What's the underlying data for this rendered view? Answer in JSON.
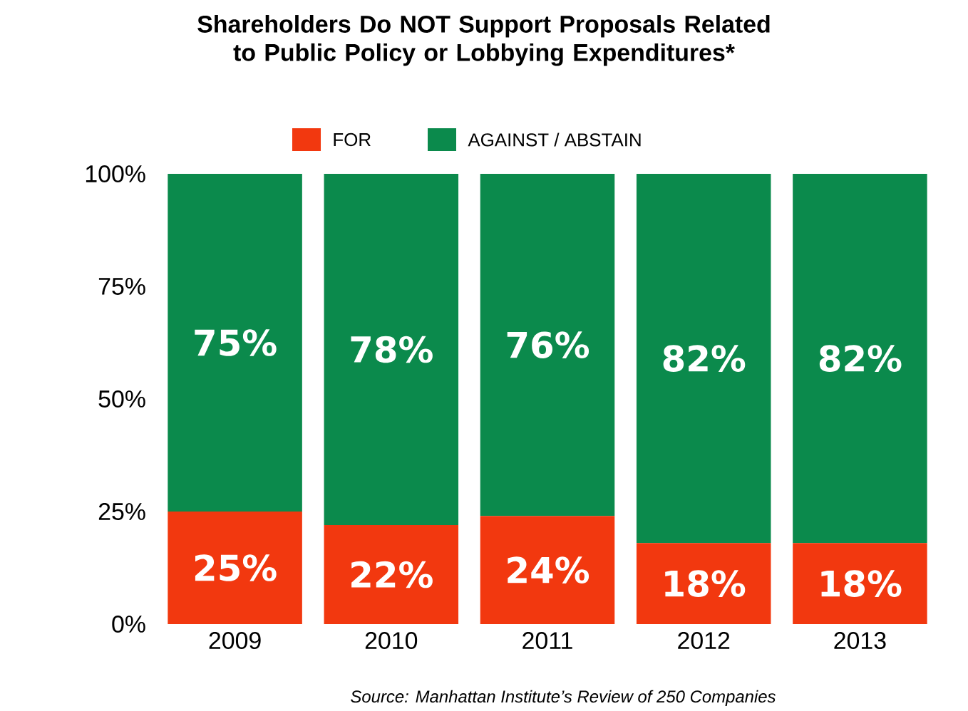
{
  "chart_data": {
    "type": "bar",
    "stacked": true,
    "title": "Shareholders Do NOT Support Proposals Related to Public Policy or Lobbying Expenditures*",
    "categories": [
      "2009",
      "2010",
      "2011",
      "2012",
      "2013"
    ],
    "series": [
      {
        "name": "FOR",
        "color": "#f2380f",
        "values": [
          25,
          22,
          24,
          18,
          18
        ],
        "value_labels": [
          "25%",
          "22%",
          "24%",
          "18%",
          "18%"
        ]
      },
      {
        "name": "AGAINST / ABSTAIN",
        "color": "#0b8a4c",
        "values": [
          75,
          78,
          76,
          82,
          82
        ],
        "value_labels": [
          "75%",
          "78%",
          "76%",
          "82%",
          "82%"
        ]
      }
    ],
    "ylim": [
      0,
      100
    ],
    "yticks": [
      {
        "value": 0,
        "label": "0%"
      },
      {
        "value": 25,
        "label": "25%"
      },
      {
        "value": 50,
        "label": "50%"
      },
      {
        "value": 75,
        "label": "75%"
      },
      {
        "value": 100,
        "label": "100%"
      }
    ],
    "legend": "top",
    "grid": false,
    "annotations": [
      "Source: Manhattan Institute’s Review of 250 Companies"
    ]
  }
}
